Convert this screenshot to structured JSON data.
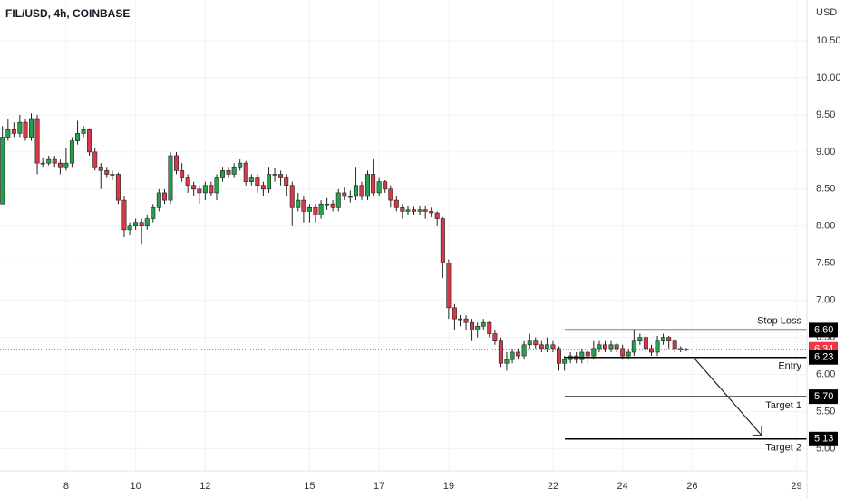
{
  "chart_data": {
    "type": "candlestick",
    "title": "FIL/USD, 4h, COINBASE",
    "y_unit": "USD",
    "up_color": "#26a04a",
    "down_color": "#d43a4a",
    "x": [
      6.17,
      6.33,
      6.5,
      6.67,
      6.83,
      7,
      7.17,
      7.33,
      7.5,
      7.67,
      7.83,
      8,
      8.17,
      8.33,
      8.5,
      8.67,
      8.83,
      9,
      9.17,
      9.33,
      9.5,
      9.67,
      9.83,
      10,
      10.17,
      10.33,
      10.5,
      10.67,
      10.83,
      11,
      11.17,
      11.33,
      11.5,
      11.67,
      11.83,
      12,
      12.17,
      12.33,
      12.5,
      12.67,
      12.83,
      13,
      13.17,
      13.33,
      13.5,
      13.67,
      13.83,
      14,
      14.17,
      14.33,
      14.5,
      14.67,
      14.83,
      15,
      15.17,
      15.33,
      15.5,
      15.67,
      15.83,
      16,
      16.17,
      16.33,
      16.5,
      16.67,
      16.83,
      17,
      17.17,
      17.33,
      17.5,
      17.67,
      17.83,
      18,
      18.17,
      18.33,
      18.5,
      18.67,
      18.83,
      19,
      19.17,
      19.33,
      19.5,
      19.67,
      19.83,
      20,
      20.17,
      20.33,
      20.5,
      20.67,
      20.83,
      21,
      21.17,
      21.33,
      21.5,
      21.67,
      21.83,
      22,
      22.17,
      22.33,
      22.5,
      22.67,
      22.83,
      23,
      23.17,
      23.33,
      23.5,
      23.67,
      23.83,
      24,
      24.17,
      24.33,
      24.5,
      24.67,
      24.83,
      25,
      25.17,
      25.33,
      25.5,
      25.67,
      25.83
    ],
    "open": [
      8.3,
      9.2,
      9.3,
      9.25,
      9.4,
      9.2,
      9.45,
      8.85,
      8.85,
      8.9,
      8.85,
      8.8,
      8.85,
      9.15,
      9.25,
      9.3,
      9.0,
      8.8,
      8.75,
      8.7,
      8.7,
      8.35,
      7.95,
      8.0,
      8.05,
      8.0,
      8.1,
      8.25,
      8.45,
      8.35,
      8.95,
      8.75,
      8.65,
      8.55,
      8.5,
      8.45,
      8.55,
      8.45,
      8.65,
      8.75,
      8.7,
      8.8,
      8.85,
      8.6,
      8.65,
      8.55,
      8.5,
      8.7,
      8.7,
      8.65,
      8.55,
      8.25,
      8.35,
      8.2,
      8.25,
      8.15,
      8.3,
      8.3,
      8.25,
      8.45,
      8.4,
      8.4,
      8.55,
      8.4,
      8.7,
      8.45,
      8.6,
      8.5,
      8.35,
      8.25,
      8.2,
      8.22,
      8.2,
      8.22,
      8.2,
      8.18,
      8.1,
      7.5,
      6.9,
      6.75,
      6.75,
      6.7,
      6.6,
      6.65,
      6.7,
      6.55,
      6.45,
      6.15,
      6.2,
      6.3,
      6.25,
      6.4,
      6.45,
      6.4,
      6.35,
      6.4,
      6.35,
      6.15,
      6.2,
      6.25,
      6.2,
      6.3,
      6.25,
      6.35,
      6.4,
      6.35,
      6.4,
      6.35,
      6.25,
      6.3,
      6.45,
      6.5,
      6.35,
      6.3,
      6.45,
      6.5,
      6.45,
      6.35,
      6.33
    ],
    "high": [
      9.35,
      9.45,
      9.4,
      9.5,
      9.45,
      9.52,
      9.5,
      8.92,
      8.95,
      8.95,
      8.9,
      9.05,
      9.2,
      9.42,
      9.35,
      9.32,
      9.05,
      8.85,
      8.8,
      8.75,
      8.72,
      8.4,
      8.05,
      8.1,
      8.1,
      8.15,
      8.3,
      8.5,
      8.5,
      9.0,
      9.0,
      8.85,
      8.7,
      8.6,
      8.55,
      8.6,
      8.6,
      8.7,
      8.8,
      8.8,
      8.85,
      8.9,
      8.88,
      8.7,
      8.7,
      8.6,
      8.8,
      8.78,
      8.75,
      8.7,
      8.6,
      8.45,
      8.4,
      8.3,
      8.3,
      8.35,
      8.38,
      8.35,
      8.5,
      8.52,
      8.48,
      8.8,
      8.6,
      8.75,
      8.9,
      8.65,
      8.62,
      8.55,
      8.4,
      8.3,
      8.28,
      8.26,
      8.27,
      8.28,
      8.25,
      8.2,
      8.12,
      7.55,
      6.95,
      6.8,
      6.8,
      6.75,
      6.7,
      6.75,
      6.72,
      6.6,
      6.5,
      6.3,
      6.35,
      6.35,
      6.45,
      6.55,
      6.5,
      6.45,
      6.5,
      6.45,
      6.38,
      6.25,
      6.3,
      6.3,
      6.35,
      6.35,
      6.45,
      6.45,
      6.45,
      6.45,
      6.42,
      6.4,
      6.35,
      6.6,
      6.55,
      6.52,
      6.4,
      6.52,
      6.55,
      6.52,
      6.48,
      6.38,
      6.36
    ],
    "low": [
      8.3,
      9.15,
      9.2,
      9.2,
      9.15,
      9.15,
      8.7,
      8.8,
      8.82,
      8.8,
      8.7,
      8.75,
      8.8,
      9.1,
      9.2,
      8.95,
      8.75,
      8.5,
      8.65,
      8.62,
      8.3,
      7.85,
      7.88,
      7.95,
      7.75,
      7.95,
      8.05,
      8.2,
      8.3,
      8.3,
      8.7,
      8.6,
      8.45,
      8.4,
      8.3,
      8.35,
      8.4,
      8.35,
      8.6,
      8.65,
      8.65,
      8.75,
      8.55,
      8.55,
      8.45,
      8.4,
      8.45,
      8.6,
      8.55,
      8.4,
      8.0,
      8.2,
      8.05,
      8.05,
      8.05,
      8.1,
      8.22,
      8.2,
      8.2,
      8.35,
      8.32,
      8.35,
      8.35,
      8.35,
      8.4,
      8.4,
      8.45,
      8.25,
      8.2,
      8.1,
      8.15,
      8.15,
      8.15,
      8.1,
      8.12,
      8.0,
      7.3,
      6.75,
      6.6,
      6.65,
      6.6,
      6.45,
      6.5,
      6.6,
      6.5,
      6.4,
      6.1,
      6.05,
      6.15,
      6.2,
      6.2,
      6.35,
      6.35,
      6.3,
      6.3,
      6.3,
      6.05,
      6.05,
      6.15,
      6.15,
      6.15,
      6.15,
      6.2,
      6.3,
      6.3,
      6.3,
      6.3,
      6.2,
      6.2,
      6.25,
      6.4,
      6.3,
      6.25,
      6.25,
      6.4,
      6.35,
      6.3,
      6.3,
      6.31
    ],
    "close": [
      9.2,
      9.3,
      9.25,
      9.4,
      9.2,
      9.45,
      8.85,
      8.85,
      8.9,
      8.85,
      8.8,
      8.85,
      9.15,
      9.25,
      9.3,
      9.0,
      8.8,
      8.75,
      8.7,
      8.7,
      8.35,
      7.95,
      8.0,
      8.05,
      8.0,
      8.1,
      8.25,
      8.45,
      8.35,
      8.95,
      8.75,
      8.65,
      8.55,
      8.5,
      8.45,
      8.55,
      8.45,
      8.65,
      8.75,
      8.7,
      8.8,
      8.85,
      8.6,
      8.65,
      8.55,
      8.5,
      8.7,
      8.7,
      8.65,
      8.55,
      8.25,
      8.35,
      8.2,
      8.25,
      8.15,
      8.3,
      8.3,
      8.25,
      8.45,
      8.4,
      8.4,
      8.55,
      8.4,
      8.7,
      8.45,
      8.6,
      8.5,
      8.35,
      8.25,
      8.2,
      8.22,
      8.2,
      8.22,
      8.2,
      8.18,
      8.1,
      7.5,
      6.9,
      6.75,
      6.75,
      6.7,
      6.6,
      6.65,
      6.7,
      6.55,
      6.45,
      6.15,
      6.2,
      6.3,
      6.25,
      6.4,
      6.45,
      6.4,
      6.35,
      6.4,
      6.35,
      6.15,
      6.2,
      6.25,
      6.2,
      6.3,
      6.25,
      6.35,
      6.4,
      6.35,
      6.4,
      6.35,
      6.25,
      6.3,
      6.45,
      6.5,
      6.35,
      6.3,
      6.45,
      6.5,
      6.45,
      6.35,
      6.33,
      6.34
    ],
    "xlim": [
      6.1,
      29.3
    ],
    "xticks": [
      8,
      10,
      12,
      15,
      17,
      19,
      22,
      24,
      26,
      29
    ],
    "ylim": [
      4.7,
      11.05
    ],
    "yticks": [
      {
        "value": 5,
        "label": "5.00"
      },
      {
        "value": 5.5,
        "label": "5.50"
      },
      {
        "value": 6,
        "label": "6.00"
      },
      {
        "value": 6.5,
        "label": "6.50"
      },
      {
        "value": 7,
        "label": "7.00"
      },
      {
        "value": 7.5,
        "label": "7.50"
      },
      {
        "value": 8,
        "label": "8.00"
      },
      {
        "value": 8.5,
        "label": "8.50"
      },
      {
        "value": 9,
        "label": "9.00"
      },
      {
        "value": 9.5,
        "label": "9.50"
      },
      {
        "value": 10,
        "label": "10.00"
      },
      {
        "value": 10.5,
        "label": "10.50"
      }
    ],
    "grid": true,
    "last_price": {
      "value": 6.34,
      "label": "6.34",
      "color": "#f23645"
    },
    "levels": [
      {
        "name": "Stop Loss",
        "value": 6.6,
        "label": "6.60"
      },
      {
        "name": "Entry",
        "value": 6.23,
        "label": "6.23"
      },
      {
        "name": "Target 1",
        "value": 5.7,
        "label": "5.70"
      },
      {
        "name": "Target 2",
        "value": 5.13,
        "label": "5.13"
      }
    ]
  }
}
